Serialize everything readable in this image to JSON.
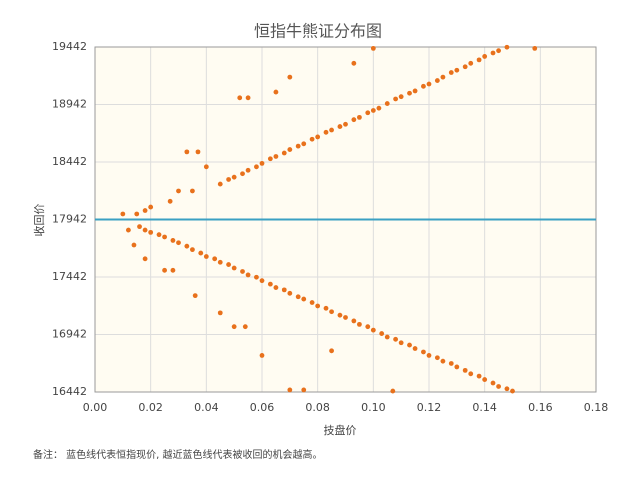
{
  "chart_data": {
    "type": "scatter",
    "title": "恒指牛熊证分布图",
    "x_label": "技盘价",
    "y_label": "收回价",
    "note": "备注： 蓝色线代表恒指现价, 越近蓝色线代表被收回的机会越高。",
    "color": "#e8711c",
    "reference_line": {
      "value": 17942,
      "color": "#3aa0c3"
    },
    "grid": true,
    "xlim": [
      0,
      0.18
    ],
    "ylim": [
      16442,
      19442
    ],
    "xticks": [
      {
        "value": 0,
        "label": "0.00"
      },
      0.02,
      0.04,
      0.06,
      0.08,
      {
        "value": 0.1,
        "label": "0.10"
      },
      0.12,
      0.14,
      0.16,
      0.18
    ],
    "yticks": [
      16442,
      16942,
      17442,
      17942,
      18442,
      18942,
      19442
    ],
    "x": [
      0.045,
      0.048,
      0.05,
      0.053,
      0.055,
      0.058,
      0.06,
      0.063,
      0.065,
      0.068,
      0.07,
      0.073,
      0.075,
      0.078,
      0.08,
      0.083,
      0.085,
      0.088,
      0.09,
      0.093,
      0.095,
      0.098,
      0.1,
      0.102,
      0.105,
      0.108,
      0.11,
      0.113,
      0.115,
      0.118,
      0.12,
      0.123,
      0.125,
      0.128,
      0.13,
      0.133,
      0.135,
      0.138,
      0.14,
      0.143,
      0.145,
      0.148,
      0.01,
      0.015,
      0.018,
      0.02,
      0.027,
      0.03,
      0.035,
      0.04,
      0.037,
      0.033,
      0.052,
      0.055,
      0.065,
      0.07,
      0.093,
      0.1,
      0.158,
      0.016,
      0.018,
      0.02,
      0.023,
      0.025,
      0.028,
      0.03,
      0.033,
      0.035,
      0.038,
      0.04,
      0.043,
      0.045,
      0.048,
      0.05,
      0.053,
      0.055,
      0.058,
      0.06,
      0.063,
      0.065,
      0.068,
      0.07,
      0.073,
      0.075,
      0.078,
      0.08,
      0.083,
      0.085,
      0.088,
      0.09,
      0.093,
      0.095,
      0.098,
      0.1,
      0.103,
      0.105,
      0.108,
      0.11,
      0.113,
      0.115,
      0.118,
      0.12,
      0.123,
      0.125,
      0.128,
      0.13,
      0.133,
      0.135,
      0.138,
      0.14,
      0.143,
      0.145,
      0.148,
      0.15,
      0.025,
      0.028,
      0.036,
      0.045,
      0.05,
      0.054,
      0.06,
      0.07,
      0.075,
      0.085,
      0.107,
      0.012,
      0.014,
      0.018
    ],
    "y": [
      18250,
      18290,
      18310,
      18340,
      18370,
      18400,
      18430,
      18470,
      18490,
      18520,
      18550,
      18580,
      18600,
      18640,
      18660,
      18700,
      18720,
      18750,
      18770,
      18810,
      18830,
      18870,
      18890,
      18910,
      18950,
      18990,
      19010,
      19040,
      19060,
      19100,
      19120,
      19150,
      19180,
      19220,
      19240,
      19270,
      19300,
      19330,
      19360,
      19390,
      19410,
      19440,
      17990,
      17990,
      18020,
      18050,
      18100,
      18190,
      18190,
      18400,
      18530,
      18530,
      19000,
      19000,
      19050,
      19180,
      19300,
      19430,
      19430,
      17880,
      17850,
      17830,
      17810,
      17790,
      17760,
      17740,
      17710,
      17680,
      17650,
      17620,
      17600,
      17570,
      17550,
      17520,
      17490,
      17460,
      17440,
      17410,
      17380,
      17350,
      17330,
      17300,
      17270,
      17250,
      17220,
      17190,
      17170,
      17140,
      17110,
      17090,
      17060,
      17030,
      17010,
      16980,
      16950,
      16920,
      16900,
      16870,
      16850,
      16820,
      16790,
      16760,
      16740,
      16710,
      16690,
      16660,
      16630,
      16600,
      16580,
      16550,
      16520,
      16490,
      16470,
      16450,
      17500,
      17500,
      17280,
      17130,
      17010,
      17010,
      16760,
      16460,
      16460,
      16800,
      16450,
      17850,
      17720,
      17600
    ]
  }
}
